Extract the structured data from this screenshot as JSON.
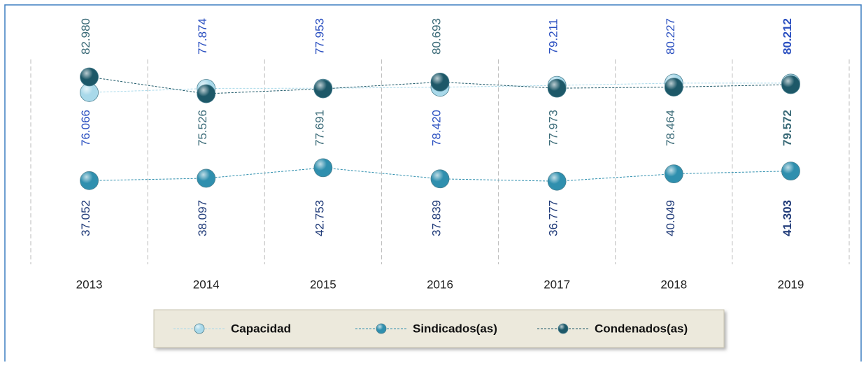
{
  "chart_data": {
    "type": "line",
    "categories": [
      "2013",
      "2014",
      "2015",
      "2016",
      "2017",
      "2018",
      "2019"
    ],
    "series": [
      {
        "name": "Capacidad",
        "color": "#a9d9ea",
        "label_color": "#2a4fc0",
        "values": [
          76.066,
          77.874,
          77.953,
          78.42,
          79.211,
          80.227,
          80.212
        ]
      },
      {
        "name": "Sindicados(as)",
        "color": "#2f8fae",
        "label_color": "#1f3a78",
        "values": [
          37.052,
          38.097,
          42.753,
          37.839,
          36.777,
          40.049,
          41.303
        ]
      },
      {
        "name": "Condenados(as)",
        "color": "#1d5868",
        "label_color": "#3b6b78",
        "values": [
          82.98,
          75.526,
          77.691,
          80.693,
          77.973,
          78.464,
          79.572
        ]
      }
    ],
    "value_labels": [
      [
        "76.066",
        "77.874",
        "77.953",
        "78.420",
        "79.211",
        "80.227",
        "80.212"
      ],
      [
        "37.052",
        "38.097",
        "42.753",
        "37.839",
        "36.777",
        "40.049",
        "41.303"
      ],
      [
        "82.980",
        "75.526",
        "77.691",
        "80.693",
        "77.973",
        "78.464",
        "79.572"
      ]
    ],
    "ylim": [
      0,
      100
    ],
    "legend": "bottom"
  }
}
